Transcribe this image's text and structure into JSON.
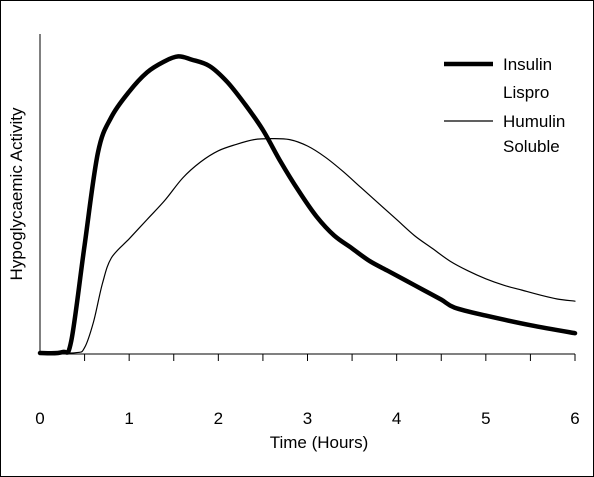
{
  "chart_data": {
    "type": "line",
    "title": "",
    "xlabel": "Time (Hours)",
    "ylabel": "Hypoglycaemic Activity",
    "xlim": [
      0,
      6
    ],
    "ylim": [
      0,
      1
    ],
    "x_ticks": [
      "0",
      "1",
      "2",
      "3",
      "4",
      "5",
      "6"
    ],
    "y_ticks": [],
    "grid": false,
    "legend_position": "top-right",
    "series": [
      {
        "name": "Insulin Lispro",
        "line_style": "thick",
        "color": "#000000",
        "points": [
          [
            0.0,
            0.003
          ],
          [
            0.25,
            0.006
          ],
          [
            0.35,
            0.04
          ],
          [
            0.5,
            0.34
          ],
          [
            0.65,
            0.63
          ],
          [
            0.8,
            0.74
          ],
          [
            1.0,
            0.82
          ],
          [
            1.2,
            0.88
          ],
          [
            1.4,
            0.915
          ],
          [
            1.55,
            0.93
          ],
          [
            1.7,
            0.92
          ],
          [
            1.9,
            0.9
          ],
          [
            2.1,
            0.85
          ],
          [
            2.3,
            0.78
          ],
          [
            2.5,
            0.7
          ],
          [
            2.7,
            0.6
          ],
          [
            2.9,
            0.51
          ],
          [
            3.1,
            0.43
          ],
          [
            3.3,
            0.37
          ],
          [
            3.5,
            0.33
          ],
          [
            3.7,
            0.29
          ],
          [
            3.9,
            0.26
          ],
          [
            4.1,
            0.23
          ],
          [
            4.3,
            0.2
          ],
          [
            4.5,
            0.17
          ],
          [
            4.65,
            0.145
          ],
          [
            5.0,
            0.12
          ],
          [
            5.5,
            0.09
          ],
          [
            6.0,
            0.065
          ]
        ]
      },
      {
        "name": "Humulin Soluble",
        "line_style": "thin",
        "color": "#000000",
        "points": [
          [
            0.0,
            0.003
          ],
          [
            0.4,
            0.004
          ],
          [
            0.5,
            0.02
          ],
          [
            0.6,
            0.1
          ],
          [
            0.7,
            0.22
          ],
          [
            0.8,
            0.3
          ],
          [
            1.0,
            0.36
          ],
          [
            1.2,
            0.42
          ],
          [
            1.4,
            0.48
          ],
          [
            1.6,
            0.55
          ],
          [
            1.8,
            0.6
          ],
          [
            2.0,
            0.635
          ],
          [
            2.2,
            0.655
          ],
          [
            2.4,
            0.67
          ],
          [
            2.6,
            0.673
          ],
          [
            2.8,
            0.67
          ],
          [
            3.0,
            0.65
          ],
          [
            3.2,
            0.615
          ],
          [
            3.4,
            0.57
          ],
          [
            3.6,
            0.52
          ],
          [
            3.8,
            0.47
          ],
          [
            4.0,
            0.42
          ],
          [
            4.2,
            0.37
          ],
          [
            4.4,
            0.33
          ],
          [
            4.6,
            0.29
          ],
          [
            4.8,
            0.26
          ],
          [
            5.0,
            0.235
          ],
          [
            5.2,
            0.215
          ],
          [
            5.4,
            0.2
          ],
          [
            5.6,
            0.185
          ],
          [
            5.8,
            0.172
          ],
          [
            6.0,
            0.165
          ]
        ]
      }
    ],
    "legend": [
      {
        "line1": "Insulin",
        "line2": "Lispro"
      },
      {
        "line1": "Humulin",
        "line2": "Soluble"
      }
    ]
  }
}
